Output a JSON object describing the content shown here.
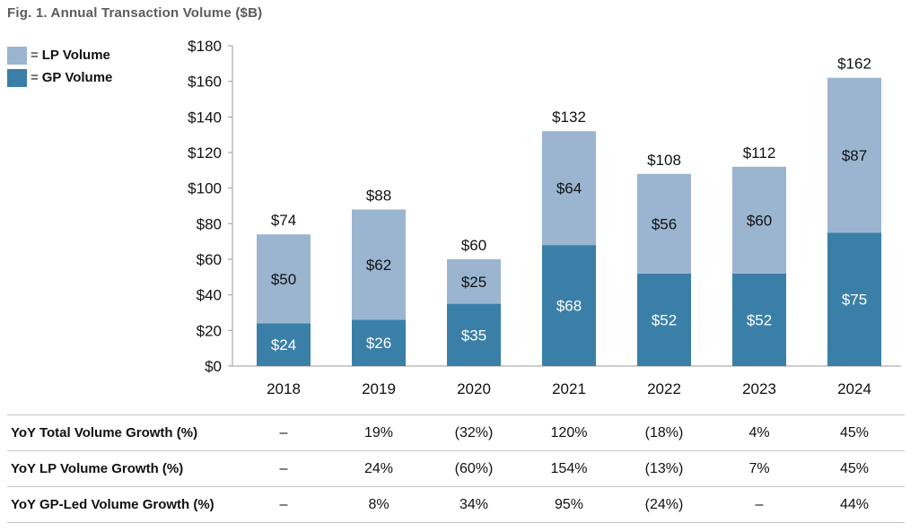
{
  "figure": {
    "title": "Fig. 1. Annual Transaction Volume ($B)"
  },
  "legend": [
    {
      "label": "LP Volume",
      "color": "#9bb5d1"
    },
    {
      "label": "GP Volume",
      "color": "#3a7fa8"
    }
  ],
  "chart_data": {
    "type": "bar",
    "stacked": true,
    "title": "Fig. 1. Annual Transaction Volume ($B)",
    "categories": [
      "2018",
      "2019",
      "2020",
      "2021",
      "2022",
      "2023",
      "2024"
    ],
    "series": [
      {
        "name": "GP Volume",
        "color": "#3a7fa8",
        "values": [
          24,
          26,
          35,
          68,
          52,
          52,
          75
        ],
        "labels": [
          "$24",
          "$26",
          "$35",
          "$68",
          "$52",
          "$52",
          "$75"
        ]
      },
      {
        "name": "LP Volume",
        "color": "#9bb5d1",
        "values": [
          50,
          62,
          25,
          64,
          56,
          60,
          87
        ],
        "labels": [
          "$50",
          "$62",
          "$25",
          "$64",
          "$56",
          "$60",
          "$87"
        ]
      }
    ],
    "totals": [
      74,
      88,
      60,
      132,
      108,
      112,
      162
    ],
    "total_labels": [
      "$74",
      "$88",
      "$60",
      "$132",
      "$108",
      "$112",
      "$162"
    ],
    "ylim": [
      0,
      180
    ],
    "yticks": [
      0,
      20,
      40,
      60,
      80,
      100,
      120,
      140,
      160,
      180
    ],
    "ytick_labels": [
      "$0",
      "$20",
      "$40",
      "$60",
      "$80",
      "$100",
      "$120",
      "$140",
      "$160",
      "$180"
    ],
    "grid": false,
    "legend_position": "top-left"
  },
  "table": {
    "rows": [
      {
        "label": "YoY Total Volume Growth (%)",
        "values": [
          "–",
          "19%",
          "(32%)",
          "120%",
          "(18%)",
          "4%",
          "45%"
        ]
      },
      {
        "label": "YoY LP Volume Growth (%)",
        "values": [
          "–",
          "24%",
          "(60%)",
          "154%",
          "(13%)",
          "7%",
          "45%"
        ]
      },
      {
        "label": "YoY GP-Led Volume Growth (%)",
        "values": [
          "–",
          "8%",
          "34%",
          "95%",
          "(24%)",
          "–",
          "44%"
        ]
      }
    ]
  }
}
